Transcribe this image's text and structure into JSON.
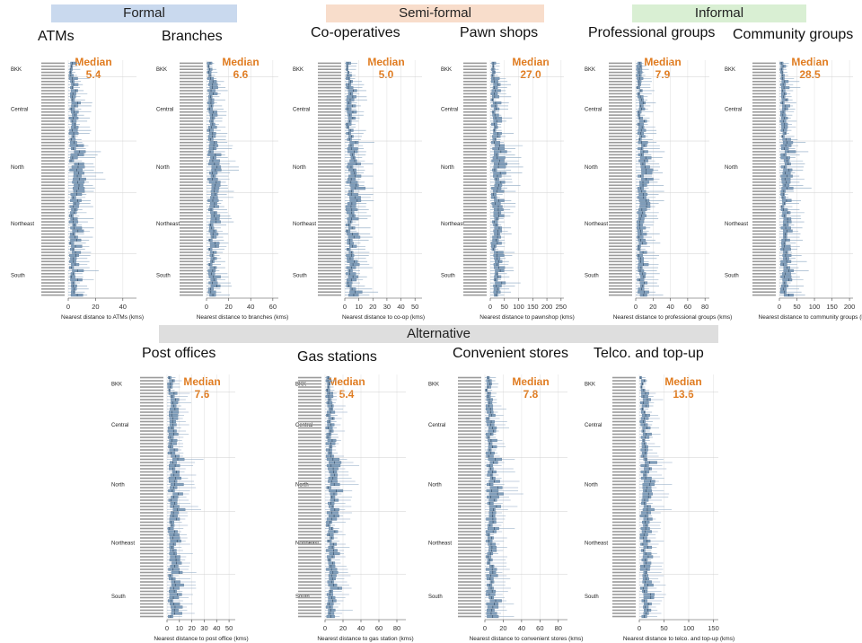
{
  "bands": {
    "formal": {
      "label": "Formal",
      "color": "#C9D9EE"
    },
    "semiformal": {
      "label": "Semi-formal",
      "color": "#F8DDCB"
    },
    "informal": {
      "label": "Informal",
      "color": "#D9EFD3"
    },
    "alternative": {
      "label": "Alternative",
      "color": "#DEDEDE"
    }
  },
  "median_label": "Median",
  "regions": [
    "BKK",
    "Central",
    "North",
    "Northeast",
    "South"
  ],
  "chart_data": [
    {
      "type": "boxplot",
      "title": "ATMs",
      "median": "5.4",
      "xlabel": "Nearest distance to ATMs (kms)",
      "ticks": [
        0,
        20,
        40
      ],
      "xlim": [
        0,
        50
      ],
      "scale": 1.0
    },
    {
      "type": "boxplot",
      "title": "Branches",
      "median": "6.6",
      "xlabel": "Nearest distance to branches (kms)",
      "ticks": [
        0,
        20,
        40,
        60
      ],
      "xlim": [
        0,
        65
      ],
      "scale": 1.2
    },
    {
      "type": "boxplot",
      "title": "Co-operatives",
      "median": "5.0",
      "xlabel": "Nearest distance to co-op (kms)",
      "ticks": [
        0,
        10,
        20,
        30,
        40,
        50
      ],
      "xlim": [
        0,
        55
      ],
      "scale": 1.0
    },
    {
      "type": "boxplot",
      "title": "Pawn shops",
      "median": "27.0",
      "xlabel": "Nearest distance to pawnshop (kms)",
      "ticks": [
        0,
        50,
        100,
        150,
        200,
        250
      ],
      "xlim": [
        0,
        260
      ],
      "scale": 4.5
    },
    {
      "type": "boxplot",
      "title": "Professional groups",
      "median": "7.9",
      "xlabel": "Nearest distance to professional groups (kms)",
      "ticks": [
        0,
        20,
        40,
        60,
        80
      ],
      "xlim": [
        0,
        85
      ],
      "scale": 1.5
    },
    {
      "type": "boxplot",
      "title": "Community groups",
      "median": "28.5",
      "xlabel": "Nearest distance to community groups (kms)",
      "ticks": [
        0,
        50,
        100,
        150,
        200
      ],
      "xlim": [
        0,
        210
      ],
      "scale": 3.5
    },
    {
      "type": "boxplot",
      "title": "Post offices",
      "median": "7.6",
      "xlabel": "Nearest distance to post office (kms)",
      "ticks": [
        0,
        10,
        20,
        30,
        40,
        50
      ],
      "xlim": [
        0,
        55
      ],
      "scale": 1.1
    },
    {
      "type": "boxplot",
      "title": "Gas stations",
      "median": "5.4",
      "xlabel": "Nearest distance to gas station (kms)",
      "ticks": [
        0,
        20,
        40,
        60,
        80
      ],
      "xlim": [
        0,
        90
      ],
      "scale": 1.5
    },
    {
      "type": "boxplot",
      "title": "Convenient stores",
      "median": "7.8",
      "xlabel": "Nearest distance to convenient stores (kms)",
      "ticks": [
        0,
        20,
        40,
        60,
        80
      ],
      "xlim": [
        0,
        90
      ],
      "scale": 1.5
    },
    {
      "type": "boxplot",
      "title": "Telco. and top-up",
      "median": "13.6",
      "xlabel": "Nearest distance to telco. and top-up (kms)",
      "ticks": [
        0,
        50,
        100,
        150
      ],
      "xlim": [
        0,
        160
      ],
      "scale": 2.5
    }
  ]
}
